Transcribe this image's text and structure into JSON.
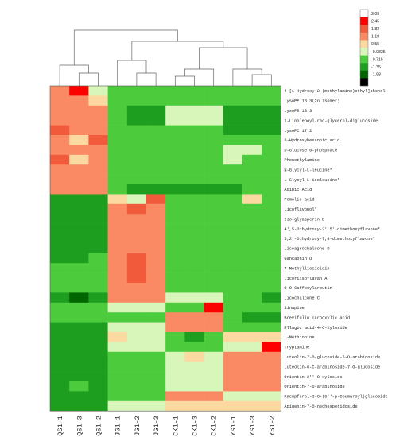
{
  "chart_data": {
    "type": "heatmap",
    "title": "",
    "xlabel": "",
    "ylabel": "",
    "columns": [
      "QS1-1",
      "QS1-3",
      "QS1-2",
      "JG1-1",
      "JG1-2",
      "JG1-3",
      "CK1-1",
      "CK1-3",
      "CK1-2",
      "YS1-1",
      "YS1-3",
      "YS1-2"
    ],
    "rows": [
      "4-[1-Hydroxy-2-(methylamino)ethyl]phenol",
      "LysoPE 18:3(2n isomer)",
      "LysoPE 18:3",
      "1-Linolenoyl-rac-glycerol-diglucoside",
      "LysoPC 17:2",
      "6-Hydroxyhexanoic acid",
      "D-Glucose 6-phosphate",
      "Phenethylamine",
      "N-Glycyl-L-leucine*",
      "L-Glycyl-L-isoleucine*",
      "Adipic Acid",
      "Pomolic acid",
      "Licoflavonol*",
      "Iso-glyasperin D",
      "4',5-Dihydroxy-3',5'-dimethoxyflavone*",
      "5,2'-Dihydroxy-7,8-dimethoxyflavone*",
      "Licoagrochalcone D",
      "Gancaonin D",
      "7-Methylliocicidin",
      "Licoriisoflavan A",
      "O-O-Caffeoylarbutin",
      "Licochalcone C",
      "Sinapine",
      "Brevifolin carboxylic acid",
      "Ellagic acid-4-O-Xyloside",
      "L-Methionine",
      "Tryptamine",
      "Luteolin-7-O-glucoside-5-O-arabinoside",
      "Luteolin-6-C-arabinoside-7-O-glucoside",
      "Orientin-2''-O-xyloside",
      "Orientin-7-O-arabinoside",
      "Kaempferol-3-O-(6''-p-Coumaroyl)glucoside",
      "Apigenin-7-O-neohesperidoside"
    ],
    "values": [
      [
        1.5,
        2.9,
        0.4,
        -0.5,
        -0.5,
        -0.5,
        -0.5,
        -0.5,
        -0.5,
        -0.5,
        -0.5,
        -0.5
      ],
      [
        1.5,
        1.5,
        1.1,
        -0.5,
        -0.5,
        -0.5,
        -0.5,
        -0.5,
        -0.5,
        -0.5,
        -0.5,
        -0.5
      ],
      [
        1.5,
        1.5,
        1.5,
        -0.5,
        -1.0,
        -1.0,
        0.3,
        0.3,
        0.3,
        -1.0,
        -1.0,
        -1.0
      ],
      [
        1.5,
        1.5,
        1.5,
        -0.5,
        -1.0,
        -1.0,
        0.3,
        0.3,
        0.3,
        -1.0,
        -1.0,
        -1.0
      ],
      [
        2.0,
        1.5,
        1.5,
        -0.5,
        -0.5,
        -0.5,
        -0.5,
        -0.5,
        -0.5,
        -1.0,
        -1.0,
        -1.0
      ],
      [
        1.5,
        1.0,
        2.0,
        -0.5,
        -0.5,
        -0.5,
        -0.5,
        -0.5,
        -0.5,
        -0.5,
        -0.5,
        -0.5
      ],
      [
        1.5,
        1.5,
        1.5,
        -0.5,
        -0.5,
        -0.5,
        -0.5,
        -0.5,
        -0.5,
        0.0,
        0.0,
        -0.5
      ],
      [
        2.0,
        1.0,
        1.5,
        -0.5,
        -0.5,
        -0.5,
        -0.5,
        -0.5,
        -0.5,
        0.0,
        -0.5,
        -0.5
      ],
      [
        1.5,
        1.5,
        1.5,
        -0.5,
        -0.5,
        -0.5,
        -0.5,
        -0.5,
        -0.5,
        -0.5,
        -0.5,
        -0.5
      ],
      [
        1.5,
        1.5,
        1.5,
        -0.5,
        -0.5,
        -0.5,
        -0.5,
        -0.5,
        -0.5,
        -0.5,
        -0.5,
        -0.5
      ],
      [
        1.5,
        1.5,
        1.5,
        -0.5,
        -1.0,
        -1.0,
        -1.0,
        -1.0,
        -1.0,
        -1.0,
        -0.5,
        -0.2
      ],
      [
        -1.0,
        -1.0,
        -1.0,
        1.0,
        0.0,
        2.0,
        -0.5,
        -0.5,
        -0.5,
        -0.5,
        1.0,
        -0.5
      ],
      [
        -1.0,
        -1.0,
        -1.0,
        1.5,
        2.0,
        1.5,
        -0.5,
        -0.5,
        -0.5,
        -0.5,
        -0.5,
        -0.5
      ],
      [
        -1.0,
        -1.0,
        -1.0,
        1.5,
        1.5,
        1.5,
        -0.5,
        -0.5,
        -0.5,
        -0.5,
        -0.5,
        -0.5
      ],
      [
        -1.0,
        -1.0,
        -1.0,
        1.5,
        1.5,
        1.5,
        -0.5,
        -0.5,
        -0.5,
        -0.5,
        -0.5,
        -0.5
      ],
      [
        -1.0,
        -1.0,
        -1.0,
        1.5,
        1.5,
        1.5,
        -0.5,
        -0.5,
        -0.5,
        -0.5,
        -0.5,
        -0.5
      ],
      [
        -1.0,
        -1.0,
        -1.0,
        1.5,
        1.5,
        1.5,
        -0.5,
        -0.5,
        -0.5,
        -0.5,
        -0.5,
        -0.5
      ],
      [
        -1.0,
        -1.0,
        -0.5,
        1.5,
        2.0,
        1.5,
        -0.5,
        -0.5,
        -0.5,
        -0.5,
        -0.5,
        -0.5
      ],
      [
        -0.5,
        -0.5,
        -0.5,
        1.5,
        2.0,
        1.5,
        -0.5,
        -0.5,
        -0.5,
        -0.5,
        -0.5,
        -0.5
      ],
      [
        -0.5,
        -0.5,
        -0.5,
        1.5,
        2.0,
        1.5,
        -0.5,
        -0.5,
        -0.5,
        -0.5,
        -0.5,
        -0.5
      ],
      [
        -0.5,
        -0.5,
        -0.5,
        1.5,
        1.5,
        1.5,
        -0.5,
        -0.5,
        -0.5,
        -0.5,
        -0.5,
        -0.5
      ],
      [
        -1.0,
        -1.7,
        -1.0,
        1.5,
        1.5,
        1.5,
        0.0,
        0.0,
        0.0,
        -0.5,
        -0.5,
        -1.0
      ],
      [
        -0.5,
        -0.5,
        -0.5,
        0.3,
        0.3,
        0.3,
        -0.5,
        -0.5,
        2.9,
        -0.5,
        -0.5,
        -0.5
      ],
      [
        -0.5,
        -0.5,
        -0.5,
        -0.5,
        -0.5,
        -0.5,
        1.5,
        1.5,
        1.5,
        -0.5,
        -1.0,
        -1.0
      ],
      [
        -1.0,
        -1.0,
        -1.0,
        0.3,
        0.3,
        0.3,
        1.5,
        1.5,
        1.5,
        -0.5,
        -0.5,
        -0.5
      ],
      [
        -1.0,
        -1.0,
        -1.0,
        1.0,
        0.3,
        0.3,
        -0.5,
        -1.0,
        -0.5,
        0.8,
        0.8,
        0.8
      ],
      [
        -1.0,
        -1.0,
        -1.0,
        0.3,
        0.3,
        0.3,
        -0.5,
        -0.5,
        -0.5,
        0.3,
        0.3,
        2.5
      ],
      [
        -1.0,
        -1.0,
        -1.0,
        -0.5,
        -0.5,
        -0.5,
        0.3,
        1.0,
        0.3,
        1.5,
        1.5,
        1.5
      ],
      [
        -1.0,
        -1.0,
        -1.0,
        -0.5,
        -0.5,
        -0.5,
        0.3,
        0.3,
        0.3,
        1.5,
        1.5,
        1.5
      ],
      [
        -1.0,
        -1.0,
        -1.0,
        -0.5,
        -0.5,
        -0.5,
        0.3,
        0.3,
        0.3,
        1.5,
        1.5,
        1.5
      ],
      [
        -1.0,
        -0.5,
        -1.0,
        -0.5,
        -0.5,
        -0.5,
        0.3,
        0.3,
        0.3,
        1.5,
        1.5,
        1.5
      ],
      [
        -1.0,
        -1.0,
        -1.0,
        -0.5,
        -0.5,
        -0.5,
        1.5,
        1.5,
        1.5,
        0.0,
        0.0,
        0.0
      ],
      [
        -1.0,
        -1.0,
        -1.0,
        0.3,
        0.3,
        0.3,
        1.0,
        1.0,
        1.0,
        1.0,
        1.0,
        1.0
      ]
    ],
    "legend": {
      "position": "top-right",
      "ticks": [
        "3.08",
        "2.45",
        "1.82",
        "1.18",
        "0.55",
        "-0.0825",
        "-0.715",
        "-1.35",
        "-1.98"
      ],
      "colors": [
        "#ffffff",
        "#ff0000",
        "#f25a3c",
        "#fa8a64",
        "#fcd9a0",
        "#d8f5ba",
        "#4ccc3c",
        "#1e9e1e",
        "#006400",
        "#000000"
      ],
      "bin_edges": [
        3.08,
        2.45,
        1.82,
        1.18,
        0.55,
        -0.0825,
        -0.715,
        -1.35,
        -1.98
      ]
    },
    "dendrogram": {
      "columns": true,
      "rows": false
    }
  }
}
